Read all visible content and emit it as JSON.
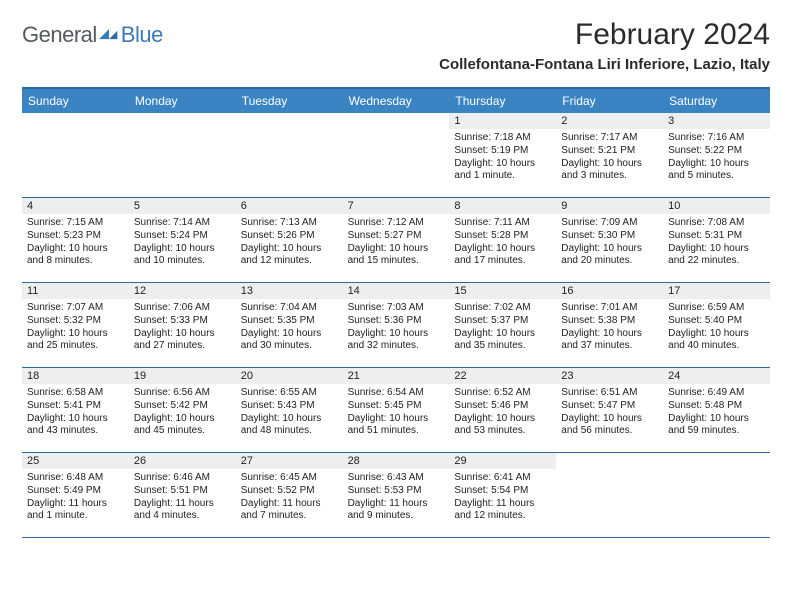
{
  "logo": {
    "general": "General",
    "blue": "Blue"
  },
  "title": "February 2024",
  "location": "Collefontana-Fontana Liri Inferiore, Lazio, Italy",
  "dayNames": [
    "Sunday",
    "Monday",
    "Tuesday",
    "Wednesday",
    "Thursday",
    "Friday",
    "Saturday"
  ],
  "colors": {
    "headerBg": "#3a84c4",
    "borderBlue": "#2c6aa3",
    "dayNumBg": "#eceeef",
    "logoGray": "#555a5f",
    "logoBlue": "#3a7ab8"
  },
  "weeks": [
    [
      {
        "n": "",
        "sr": "",
        "ss": "",
        "dl": ""
      },
      {
        "n": "",
        "sr": "",
        "ss": "",
        "dl": ""
      },
      {
        "n": "",
        "sr": "",
        "ss": "",
        "dl": ""
      },
      {
        "n": "",
        "sr": "",
        "ss": "",
        "dl": ""
      },
      {
        "n": "1",
        "sr": "Sunrise: 7:18 AM",
        "ss": "Sunset: 5:19 PM",
        "dl": "Daylight: 10 hours and 1 minute."
      },
      {
        "n": "2",
        "sr": "Sunrise: 7:17 AM",
        "ss": "Sunset: 5:21 PM",
        "dl": "Daylight: 10 hours and 3 minutes."
      },
      {
        "n": "3",
        "sr": "Sunrise: 7:16 AM",
        "ss": "Sunset: 5:22 PM",
        "dl": "Daylight: 10 hours and 5 minutes."
      }
    ],
    [
      {
        "n": "4",
        "sr": "Sunrise: 7:15 AM",
        "ss": "Sunset: 5:23 PM",
        "dl": "Daylight: 10 hours and 8 minutes."
      },
      {
        "n": "5",
        "sr": "Sunrise: 7:14 AM",
        "ss": "Sunset: 5:24 PM",
        "dl": "Daylight: 10 hours and 10 minutes."
      },
      {
        "n": "6",
        "sr": "Sunrise: 7:13 AM",
        "ss": "Sunset: 5:26 PM",
        "dl": "Daylight: 10 hours and 12 minutes."
      },
      {
        "n": "7",
        "sr": "Sunrise: 7:12 AM",
        "ss": "Sunset: 5:27 PM",
        "dl": "Daylight: 10 hours and 15 minutes."
      },
      {
        "n": "8",
        "sr": "Sunrise: 7:11 AM",
        "ss": "Sunset: 5:28 PM",
        "dl": "Daylight: 10 hours and 17 minutes."
      },
      {
        "n": "9",
        "sr": "Sunrise: 7:09 AM",
        "ss": "Sunset: 5:30 PM",
        "dl": "Daylight: 10 hours and 20 minutes."
      },
      {
        "n": "10",
        "sr": "Sunrise: 7:08 AM",
        "ss": "Sunset: 5:31 PM",
        "dl": "Daylight: 10 hours and 22 minutes."
      }
    ],
    [
      {
        "n": "11",
        "sr": "Sunrise: 7:07 AM",
        "ss": "Sunset: 5:32 PM",
        "dl": "Daylight: 10 hours and 25 minutes."
      },
      {
        "n": "12",
        "sr": "Sunrise: 7:06 AM",
        "ss": "Sunset: 5:33 PM",
        "dl": "Daylight: 10 hours and 27 minutes."
      },
      {
        "n": "13",
        "sr": "Sunrise: 7:04 AM",
        "ss": "Sunset: 5:35 PM",
        "dl": "Daylight: 10 hours and 30 minutes."
      },
      {
        "n": "14",
        "sr": "Sunrise: 7:03 AM",
        "ss": "Sunset: 5:36 PM",
        "dl": "Daylight: 10 hours and 32 minutes."
      },
      {
        "n": "15",
        "sr": "Sunrise: 7:02 AM",
        "ss": "Sunset: 5:37 PM",
        "dl": "Daylight: 10 hours and 35 minutes."
      },
      {
        "n": "16",
        "sr": "Sunrise: 7:01 AM",
        "ss": "Sunset: 5:38 PM",
        "dl": "Daylight: 10 hours and 37 minutes."
      },
      {
        "n": "17",
        "sr": "Sunrise: 6:59 AM",
        "ss": "Sunset: 5:40 PM",
        "dl": "Daylight: 10 hours and 40 minutes."
      }
    ],
    [
      {
        "n": "18",
        "sr": "Sunrise: 6:58 AM",
        "ss": "Sunset: 5:41 PM",
        "dl": "Daylight: 10 hours and 43 minutes."
      },
      {
        "n": "19",
        "sr": "Sunrise: 6:56 AM",
        "ss": "Sunset: 5:42 PM",
        "dl": "Daylight: 10 hours and 45 minutes."
      },
      {
        "n": "20",
        "sr": "Sunrise: 6:55 AM",
        "ss": "Sunset: 5:43 PM",
        "dl": "Daylight: 10 hours and 48 minutes."
      },
      {
        "n": "21",
        "sr": "Sunrise: 6:54 AM",
        "ss": "Sunset: 5:45 PM",
        "dl": "Daylight: 10 hours and 51 minutes."
      },
      {
        "n": "22",
        "sr": "Sunrise: 6:52 AM",
        "ss": "Sunset: 5:46 PM",
        "dl": "Daylight: 10 hours and 53 minutes."
      },
      {
        "n": "23",
        "sr": "Sunrise: 6:51 AM",
        "ss": "Sunset: 5:47 PM",
        "dl": "Daylight: 10 hours and 56 minutes."
      },
      {
        "n": "24",
        "sr": "Sunrise: 6:49 AM",
        "ss": "Sunset: 5:48 PM",
        "dl": "Daylight: 10 hours and 59 minutes."
      }
    ],
    [
      {
        "n": "25",
        "sr": "Sunrise: 6:48 AM",
        "ss": "Sunset: 5:49 PM",
        "dl": "Daylight: 11 hours and 1 minute."
      },
      {
        "n": "26",
        "sr": "Sunrise: 6:46 AM",
        "ss": "Sunset: 5:51 PM",
        "dl": "Daylight: 11 hours and 4 minutes."
      },
      {
        "n": "27",
        "sr": "Sunrise: 6:45 AM",
        "ss": "Sunset: 5:52 PM",
        "dl": "Daylight: 11 hours and 7 minutes."
      },
      {
        "n": "28",
        "sr": "Sunrise: 6:43 AM",
        "ss": "Sunset: 5:53 PM",
        "dl": "Daylight: 11 hours and 9 minutes."
      },
      {
        "n": "29",
        "sr": "Sunrise: 6:41 AM",
        "ss": "Sunset: 5:54 PM",
        "dl": "Daylight: 11 hours and 12 minutes."
      },
      {
        "n": "",
        "sr": "",
        "ss": "",
        "dl": ""
      },
      {
        "n": "",
        "sr": "",
        "ss": "",
        "dl": ""
      }
    ]
  ]
}
